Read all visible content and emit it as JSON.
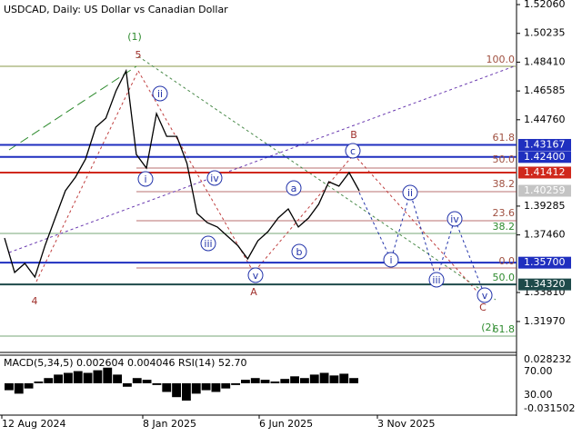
{
  "header": {
    "title": "USDCAD, Daily:  US Dollar vs Canadian Dollar"
  },
  "chart_data": {
    "type": "line",
    "color": "#000000",
    "values": [
      1.3726,
      1.3508,
      1.3565,
      1.3479,
      1.368,
      1.3853,
      1.4026,
      1.4112,
      1.4227,
      1.4429,
      1.4486,
      1.4659,
      1.4786,
      1.4256,
      1.417,
      1.4515,
      1.4371,
      1.4371,
      1.4199,
      1.3882,
      1.3824,
      1.3796,
      1.3738,
      1.368,
      1.3594,
      1.3709,
      1.3767,
      1.3853,
      1.3911,
      1.3796,
      1.3853,
      1.394,
      1.4083,
      1.4055,
      1.4141,
      1.40259
    ],
    "ylim": [
      1.3001,
      1.5235
    ],
    "yticks": [
      {
        "value": 1.5206,
        "label": "1.52060"
      },
      1.50235,
      {
        "value": 1.4841,
        "label": "1.48410"
      },
      1.46585,
      {
        "value": 1.4476,
        "label": "1.44760"
      },
      1.39285,
      {
        "value": 1.3746,
        "label": "1.37460"
      },
      {
        "value": 1.3381,
        "label": "1.33810"
      },
      {
        "value": 1.3197,
        "label": "1.31970"
      }
    ],
    "levels": [
      {
        "value": 1.43167,
        "color": "#1f2fbf"
      },
      {
        "value": 1.424,
        "label": "1.42400",
        "color": "#1f2fbf"
      },
      {
        "value": 1.41412,
        "color": "#d0281c"
      },
      {
        "value": 1.357,
        "label": "1.35700",
        "color": "#1f2fbf"
      },
      {
        "value": 1.3432,
        "label": "1.34320",
        "color": "#1e4a4a"
      },
      {
        "value": 1.40259,
        "color": "#c4c4c4"
      }
    ],
    "x_labels": [
      "12 Aug 2024",
      "8 Jan 2025",
      "6 Jun 2025",
      "3 Nov 2025"
    ]
  },
  "waves": [
    "(1)",
    "5",
    "4",
    "ii",
    "i",
    "iv",
    "iii",
    "v",
    "A",
    "a",
    "b",
    "c",
    "B",
    "C",
    "(2)",
    "i",
    "ii",
    "iii",
    "iv",
    "v"
  ],
  "fib_labels": [
    "100.0",
    "61.8",
    "50.0",
    "38.2",
    "23.6",
    "38.2",
    "0.0",
    "50.0",
    "61.8"
  ],
  "indicator": {
    "label": "MACD(5,34,5) 0.002604 0.004046 RSI(14) 52.70",
    "axis_labels": [
      "0.028232",
      "70.00",
      "30.00",
      "-0.031502"
    ],
    "ylim": [
      -0.031502,
      0.028232
    ],
    "values": [
      -0.008,
      -0.012,
      -0.006,
      0.002,
      0.006,
      0.01,
      0.012,
      0.014,
      0.012,
      0.015,
      0.018,
      0.01,
      -0.004,
      0.006,
      0.004,
      -0.002,
      -0.01,
      -0.016,
      -0.02,
      -0.012,
      -0.008,
      -0.01,
      -0.006,
      -0.002,
      0.004,
      0.006,
      0.004,
      0.002,
      0.005,
      0.008,
      0.006,
      0.01,
      0.012,
      0.009,
      0.011,
      0.006
    ]
  }
}
